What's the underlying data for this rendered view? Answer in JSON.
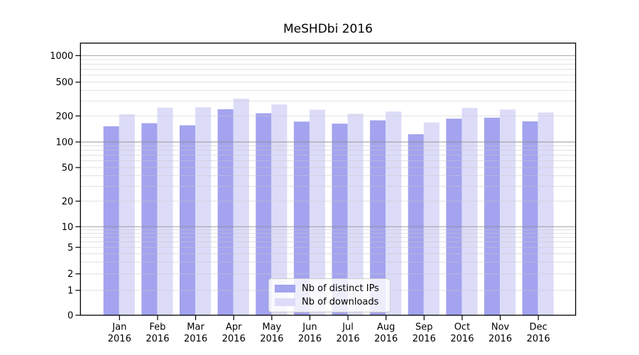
{
  "chart_data": {
    "type": "bar",
    "title": "MeSHDbi 2016",
    "categories": [
      "Jan",
      "Feb",
      "Mar",
      "Apr",
      "May",
      "Jun",
      "Jul",
      "Aug",
      "Sep",
      "Oct",
      "Nov",
      "Dec"
    ],
    "x_year_label": "2016",
    "yscale": "symlog",
    "ylim": [
      0,
      1400
    ],
    "y_ticks": [
      0,
      1,
      2,
      5,
      10,
      20,
      50,
      100,
      200,
      500,
      1000
    ],
    "grid": "both",
    "legend_position": "lower center",
    "series": [
      {
        "name": "Nb of distinct IPs",
        "color": "#a3a3ef",
        "values": [
          152,
          165,
          156,
          240,
          215,
          172,
          163,
          178,
          123,
          186,
          191,
          173
        ]
      },
      {
        "name": "Nb of downloads",
        "color": "#dcdcf9",
        "values": [
          209,
          250,
          253,
          320,
          273,
          237,
          212,
          225,
          168,
          249,
          238,
          220
        ]
      }
    ]
  }
}
